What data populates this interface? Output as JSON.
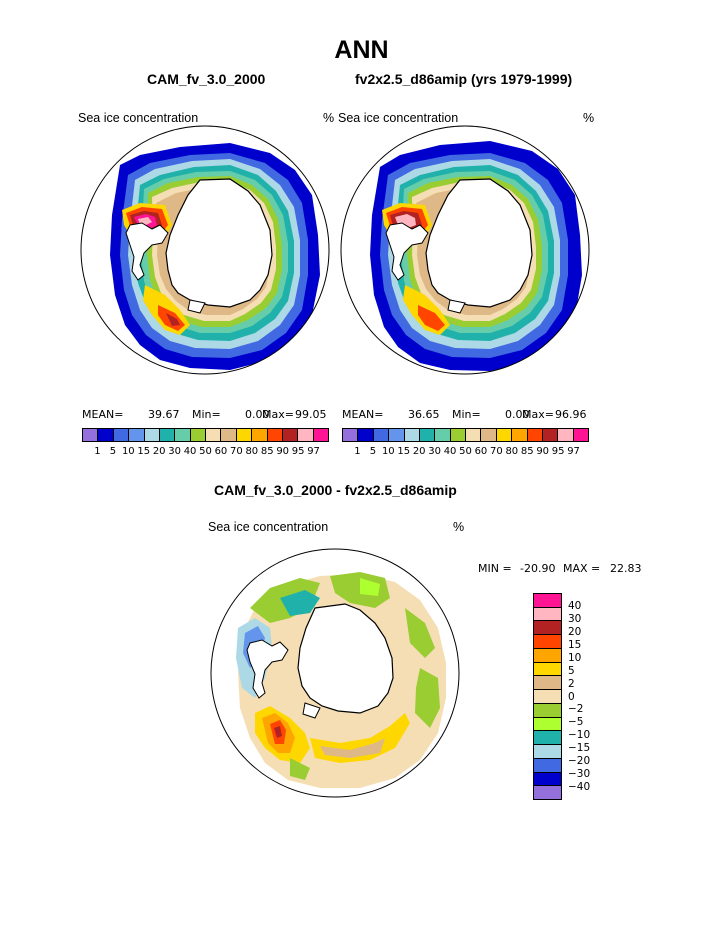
{
  "title": "ANN",
  "panels": {
    "left": {
      "title": "CAM_fv_3.0_2000",
      "var_label": "Sea ice concentration",
      "units": "%",
      "stats": {
        "mean_label": "MEAN=",
        "mean": "39.67",
        "min_label": "Min=",
        "min": "0.00",
        "max_label": "Max=",
        "max": "99.05"
      }
    },
    "right": {
      "title": "fv2x2.5_d86amip (yrs 1979-1999)",
      "var_label": "Sea ice concentration",
      "units": "%",
      "stats": {
        "mean_label": "MEAN=",
        "mean": "36.65",
        "min_label": "Min=",
        "min": "0.00",
        "max_label": "Max=",
        "max": "96.96"
      }
    },
    "diff": {
      "title": "CAM_fv_3.0_2000 - fv2x2.5_d86amip",
      "var_label": "Sea ice concentration",
      "units": "%",
      "stats": {
        "min_label": "MIN =",
        "min": "-20.90",
        "max_label": "MAX =",
        "max": "22.83"
      }
    }
  },
  "chart_data": [
    {
      "type": "heatmap",
      "name": "CAM_fv_3.0_2000 sea ice concentration (polar stereographic, Southern Hemisphere)",
      "stats": {
        "mean": 39.67,
        "min": 0.0,
        "max": 99.05
      },
      "levels": [
        1,
        5,
        10,
        15,
        20,
        30,
        40,
        50,
        60,
        70,
        80,
        85,
        90,
        95,
        97
      ],
      "colors": [
        "#9370db",
        "#0000cd",
        "#4169e1",
        "#6495ed",
        "#add8e6",
        "#20b2aa",
        "#66cdaa",
        "#9acd32",
        "#f5deb3",
        "#deb887",
        "#ffd700",
        "#ffa500",
        "#ff4500",
        "#b22222",
        "#ffb6c1",
        "#ff1493"
      ]
    },
    {
      "type": "heatmap",
      "name": "fv2x2.5_d86amip (yrs 1979-1999) sea ice concentration",
      "stats": {
        "mean": 36.65,
        "min": 0.0,
        "max": 96.96
      },
      "levels": [
        1,
        5,
        10,
        15,
        20,
        30,
        40,
        50,
        60,
        70,
        80,
        85,
        90,
        95,
        97
      ],
      "colors": [
        "#9370db",
        "#0000cd",
        "#4169e1",
        "#6495ed",
        "#add8e6",
        "#20b2aa",
        "#66cdaa",
        "#9acd32",
        "#f5deb3",
        "#deb887",
        "#ffd700",
        "#ffa500",
        "#ff4500",
        "#b22222",
        "#ffb6c1",
        "#ff1493"
      ]
    },
    {
      "type": "heatmap",
      "name": "Difference CAM_fv_3.0_2000 - fv2x2.5_d86amip",
      "stats": {
        "min": -20.9,
        "max": 22.83
      },
      "levels": [
        40,
        30,
        20,
        15,
        10,
        5,
        2,
        0,
        -2,
        -5,
        -10,
        -15,
        -20,
        -30,
        -40
      ],
      "level_labels": [
        "40",
        "30",
        "20",
        "15",
        "10",
        "5",
        "2",
        "0",
        "−2",
        "−5",
        "−10",
        "−15",
        "−20",
        "−30",
        "−40"
      ],
      "colors": [
        "#ff1493",
        "#ffb6c1",
        "#b22222",
        "#ff4500",
        "#ffa500",
        "#ffd700",
        "#deb887",
        "#f5deb3",
        "#9acd32",
        "#adff2f",
        "#20b2aa",
        "#add8e6",
        "#4169e1",
        "#0000cd",
        "#9370db"
      ]
    }
  ]
}
